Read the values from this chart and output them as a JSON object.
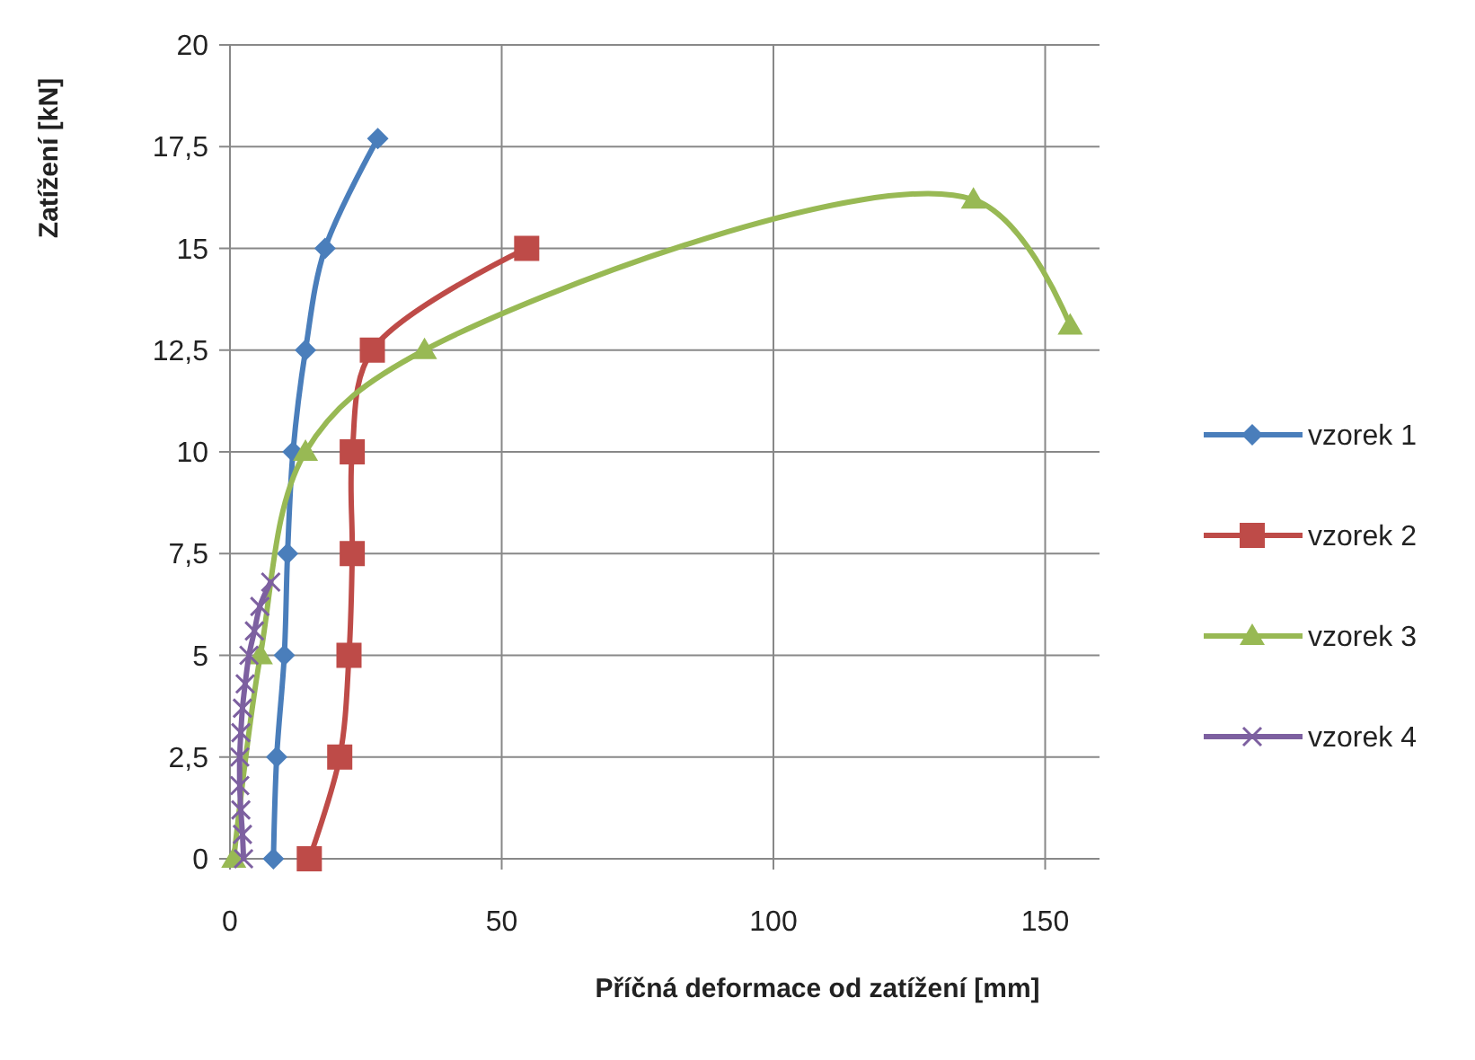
{
  "chart_data": {
    "type": "line",
    "xlabel": "Příčná deformace od zatížení [mm]",
    "ylabel": "Zatížení [kN]",
    "xlim": [
      0,
      160
    ],
    "xticks": [
      0,
      50,
      100,
      150
    ],
    "ylim": [
      0,
      20
    ],
    "yticks": [
      0,
      {
        "value": 2.5,
        "label": "2,5"
      },
      5,
      {
        "value": 7.5,
        "label": "7,5"
      },
      10,
      {
        "value": 12.5,
        "label": "12,5"
      },
      15,
      {
        "value": 17.5,
        "label": "17,5"
      },
      20
    ],
    "grid": true,
    "legend": "right",
    "series": [
      {
        "name": "vzorek 1",
        "color": "#4a7ebb",
        "marker": "diamond",
        "x": [
          8,
          8.6,
          10,
          10.6,
          11.6,
          13.9,
          17.5,
          27.2
        ],
        "values": [
          0,
          2.5,
          5,
          7.5,
          10,
          12.5,
          15,
          17.7
        ]
      },
      {
        "name": "vzorek 2",
        "color": "#be4b48",
        "marker": "square",
        "x": [
          14.6,
          20.2,
          21.9,
          22.5,
          22.5,
          26.2,
          54.6
        ],
        "values": [
          0,
          2.5,
          5,
          7.5,
          10,
          12.5,
          15
        ]
      },
      {
        "name": "vzorek 3",
        "color": "#98b954",
        "marker": "triangle",
        "x": [
          0.7,
          5.6,
          13.9,
          35.8,
          136.8,
          154.6
        ],
        "values": [
          0,
          5,
          10,
          12.5,
          16.2,
          13.1
        ]
      },
      {
        "name": "vzorek 4",
        "color": "#7d60a0",
        "marker": "cross",
        "x": [
          2.5,
          2.3,
          2,
          1.8,
          1.8,
          2,
          2.3,
          2.8,
          3.5,
          4.5,
          5.5,
          7.5
        ],
        "values": [
          0,
          0.6,
          1.2,
          1.8,
          2.5,
          3.1,
          3.7,
          4.3,
          5,
          5.6,
          6.2,
          6.8
        ]
      }
    ]
  }
}
